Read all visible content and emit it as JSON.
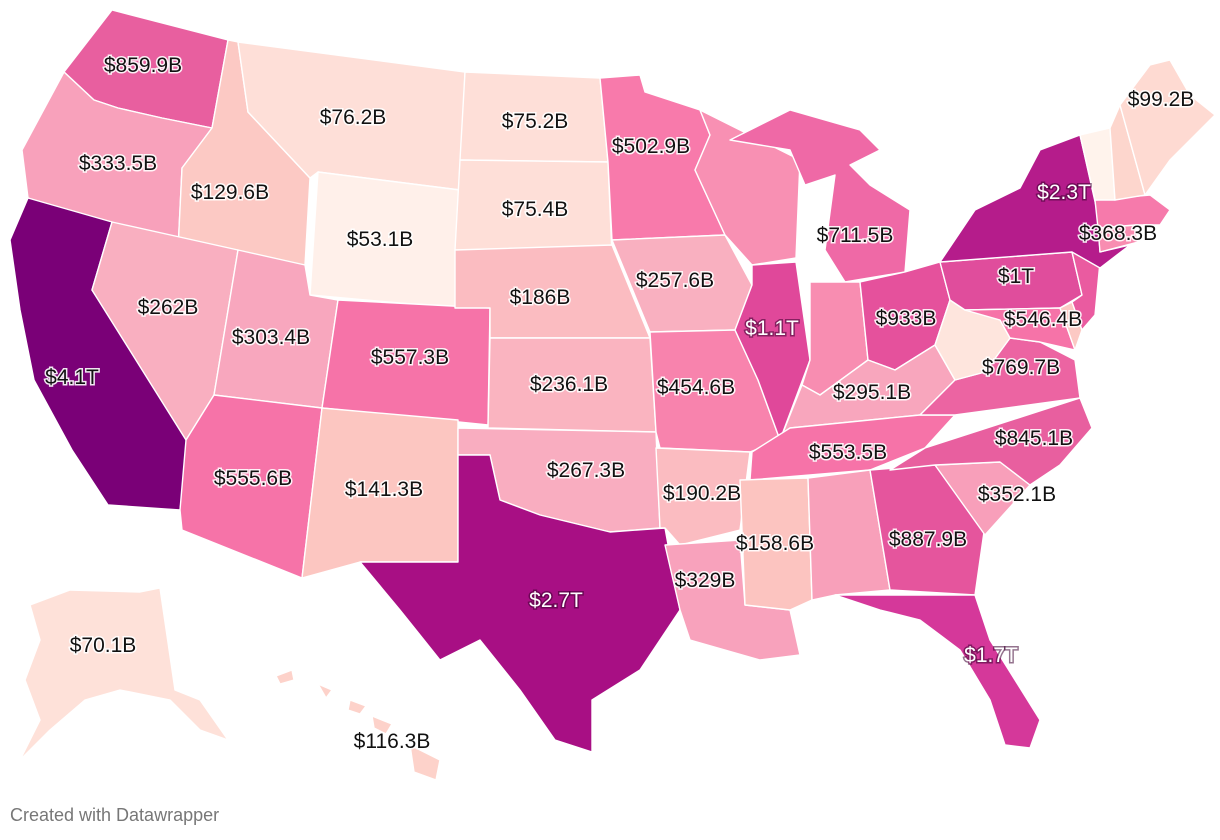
{
  "credit": "Created with Datawrapper",
  "map_data": {
    "type": "choropleth",
    "region": "United States",
    "states": [
      {
        "id": "WA",
        "label": "$859.9B",
        "color": "#e85f9f"
      },
      {
        "id": "OR",
        "label": "$333.5B",
        "color": "#f8a1bb"
      },
      {
        "id": "CA",
        "label": "$4.1T",
        "color": "#7a0077",
        "light": true
      },
      {
        "id": "ID",
        "label": "$129.6B",
        "color": "#fcc9c4"
      },
      {
        "id": "NV",
        "label": "$262B",
        "color": "#f9afc0"
      },
      {
        "id": "MT",
        "label": "$76.2B",
        "color": "#fedfd8"
      },
      {
        "id": "WY",
        "label": "$53.1B",
        "color": "#fff0ea"
      },
      {
        "id": "UT",
        "label": "$303.4B",
        "color": "#f8a7be"
      },
      {
        "id": "AZ",
        "label": "$555.6B",
        "color": "#f673a8"
      },
      {
        "id": "CO",
        "label": "$557.3B",
        "color": "#f673a8"
      },
      {
        "id": "NM",
        "label": "$141.3B",
        "color": "#fcc6c1"
      },
      {
        "id": "ND",
        "label": "$75.2B",
        "color": "#fedfd8"
      },
      {
        "id": "SD",
        "label": "$75.4B",
        "color": "#fedfd8"
      },
      {
        "id": "NE",
        "label": "$186B",
        "color": "#fbbcc1"
      },
      {
        "id": "KS",
        "label": "$236.1B",
        "color": "#fab4c0"
      },
      {
        "id": "OK",
        "label": "$267.3B",
        "color": "#f9adc0"
      },
      {
        "id": "TX",
        "label": "$2.7T",
        "color": "#a80f84",
        "light": true
      },
      {
        "id": "MN",
        "label": "$502.9B",
        "color": "#f87aab"
      },
      {
        "id": "IA",
        "label": "$257.6B",
        "color": "#f9b0c0"
      },
      {
        "id": "MO",
        "label": "$454.6B",
        "color": "#f883ad"
      },
      {
        "id": "AR",
        "label": "$190.2B",
        "color": "#fbbcc1"
      },
      {
        "id": "LA",
        "label": "$329B",
        "color": "#f8a2bc"
      },
      {
        "id": "WI",
        "label": "",
        "color": "#f890b3"
      },
      {
        "id": "IL",
        "label": "$1.1T",
        "color": "#e0489a"
      },
      {
        "id": "MI",
        "label": "$711.5B",
        "color": "#ef69a6"
      },
      {
        "id": "IN",
        "label": "",
        "color": "#f88db1"
      },
      {
        "id": "KY",
        "label": "$295.1B",
        "color": "#f8a6bd"
      },
      {
        "id": "TN",
        "label": "$553.5B",
        "color": "#f673a8"
      },
      {
        "id": "MS",
        "label": "$158.6B",
        "color": "#fcc4c0"
      },
      {
        "id": "AL",
        "label": "",
        "color": "#f8a0ba"
      },
      {
        "id": "OH",
        "label": "$933B",
        "color": "#e5519c"
      },
      {
        "id": "GA",
        "label": "$887.9B",
        "color": "#e5559d"
      },
      {
        "id": "FL",
        "label": "$1.7T",
        "color": "#d5389a"
      },
      {
        "id": "SC",
        "label": "$352.1B",
        "color": "#f89fba"
      },
      {
        "id": "NC",
        "label": "$845.1B",
        "color": "#e85f9f"
      },
      {
        "id": "VA",
        "label": "$769.7B",
        "color": "#ec64a2"
      },
      {
        "id": "WV",
        "label": "",
        "color": "#fee5dd"
      },
      {
        "id": "PA",
        "label": "$1T",
        "color": "#e04d9c"
      },
      {
        "id": "MD",
        "label": "$546.4B",
        "color": "#f673a8"
      },
      {
        "id": "NJ",
        "label": "",
        "color": "#ea5ba0"
      },
      {
        "id": "DE",
        "label": "",
        "color": "#fcc9c4"
      },
      {
        "id": "NY",
        "label": "$2.3T",
        "color": "#b51c8b",
        "light": true
      },
      {
        "id": "MA",
        "label": "$368.3B",
        "color": "#f67aab"
      },
      {
        "id": "CT",
        "label": "",
        "color": "#f88db1"
      },
      {
        "id": "VT",
        "label": "",
        "color": "#fff3ec"
      },
      {
        "id": "NH",
        "label": "",
        "color": "#fdd6cd"
      },
      {
        "id": "ME",
        "label": "$99.2B",
        "color": "#fedad2"
      },
      {
        "id": "AK",
        "label": "$70.1B",
        "color": "#fee1d9"
      },
      {
        "id": "HI",
        "label": "$116.3B",
        "color": "#fdd2ca"
      }
    ]
  }
}
